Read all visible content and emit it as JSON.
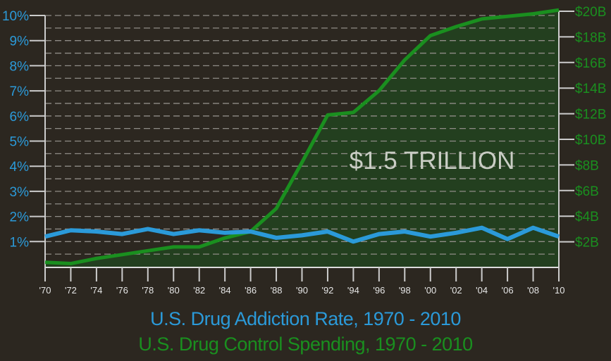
{
  "chart_data": {
    "type": "line",
    "title": "U.S. Drug Addiction Rate, 1970 - 2010",
    "subtitle": "U.S. Drug Control Spending, 1970 - 2010",
    "annotation": "$1.5 TRILLION",
    "x": [
      "'70",
      "'72",
      "'74",
      "'76",
      "'78",
      "'80",
      "'82",
      "'84",
      "'86",
      "'88",
      "'90",
      "'92",
      "'94",
      "'96",
      "'98",
      "'00",
      "'02",
      "'04",
      "'06",
      "'08",
      "'10"
    ],
    "left_axis": {
      "ticks": [
        "1%",
        "2%",
        "3%",
        "4%",
        "5%",
        "6%",
        "7%",
        "8%",
        "9%",
        "10%"
      ],
      "range": [
        0,
        10
      ],
      "unit": "%"
    },
    "right_axis": {
      "ticks": [
        "$2B",
        "$4B",
        "$6B",
        "$8B",
        "$10B",
        "$12B",
        "$14B",
        "$16B",
        "$18B",
        "$20B"
      ],
      "range": [
        0,
        20
      ],
      "unit": "$B"
    },
    "grid": true,
    "series": [
      {
        "name": "U.S. Drug Addiction Rate",
        "axis": "left",
        "color": "#2b9ad9",
        "values": [
          1.2,
          1.45,
          1.4,
          1.3,
          1.5,
          1.3,
          1.45,
          1.35,
          1.4,
          1.15,
          1.25,
          1.4,
          1.0,
          1.3,
          1.4,
          1.2,
          1.35,
          1.55,
          1.1,
          1.55,
          1.2
        ]
      },
      {
        "name": "U.S. Drug Control Spending",
        "axis": "right",
        "color": "#1a8f1f",
        "fill": "#233f1f",
        "values": [
          0.4,
          0.3,
          0.7,
          1.0,
          1.3,
          1.6,
          1.6,
          2.3,
          2.8,
          4.6,
          8.2,
          11.9,
          12.1,
          13.8,
          16.2,
          18.1,
          18.8,
          19.4,
          19.6,
          19.8,
          20.1
        ]
      }
    ]
  }
}
